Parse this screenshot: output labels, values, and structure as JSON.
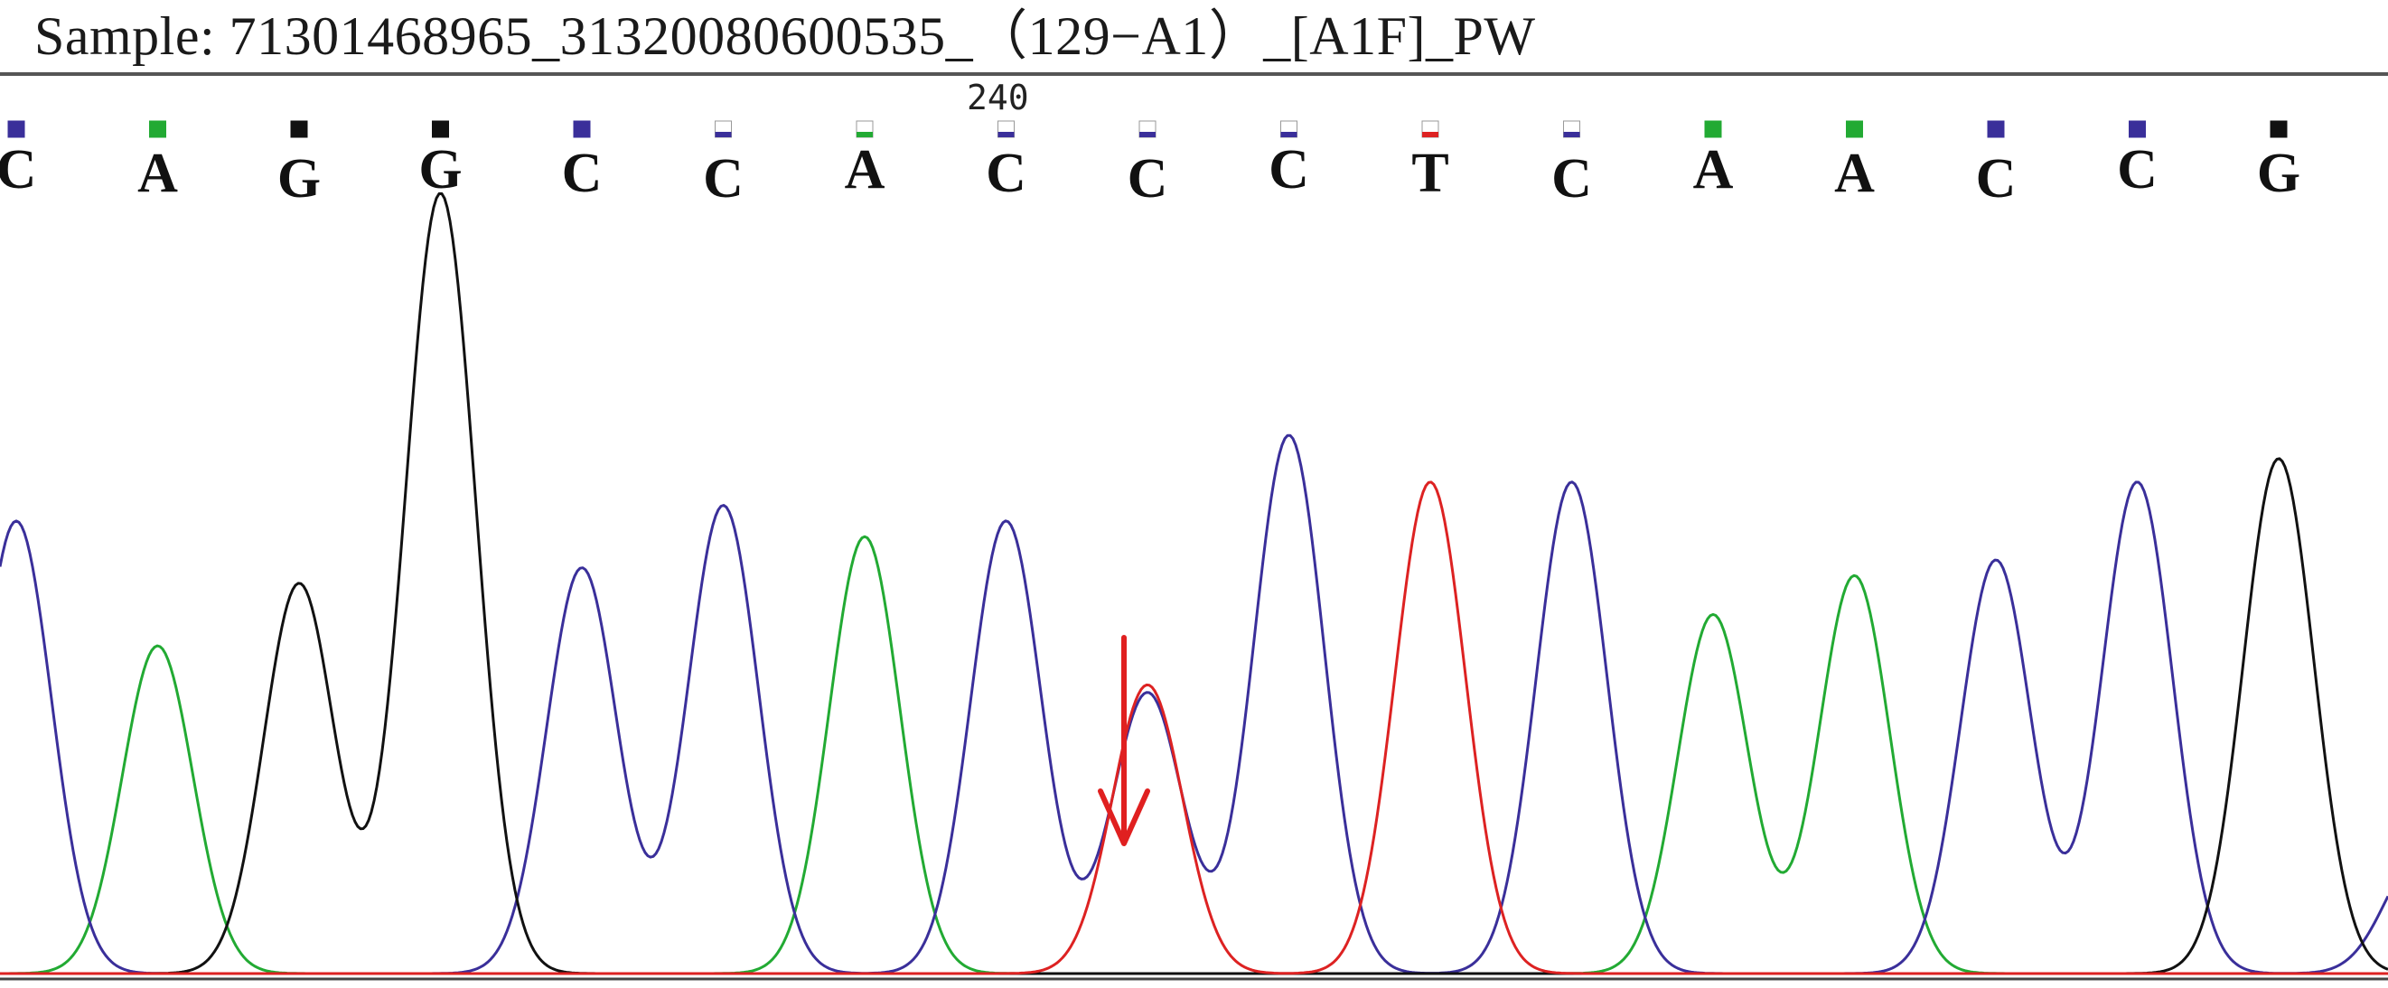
{
  "title": "Sample: 71301468965_31320080600535_（129−A1）_[A1F]_PW",
  "position_label": "240",
  "base_colors": {
    "A": "#22aa33",
    "C": "#3a2f9a",
    "G": "#111111",
    "T": "#dd2222"
  },
  "annotation": {
    "type": "arrow",
    "color": "#e02020",
    "points_to_base_index": 8
  },
  "chart_data": {
    "type": "line",
    "title": "Sample: 71301468965_31320080600535_（129−A1）_[A1F]_PW",
    "xlabel": "",
    "ylabel": "",
    "tick_labels": [
      "240"
    ],
    "grid": false,
    "bases": [
      "C",
      "A",
      "G",
      "G",
      "C",
      "C",
      "A",
      "C",
      "C",
      "C",
      "T",
      "C",
      "A",
      "A",
      "C",
      "C",
      "G"
    ],
    "quality_full": [
      true,
      true,
      true,
      true,
      true,
      false,
      false,
      false,
      false,
      false,
      false,
      false,
      true,
      true,
      true,
      true,
      true
    ],
    "series": [
      {
        "name": "A",
        "color": "#22aa33",
        "peaks": [
          [
            1,
            0.42
          ],
          [
            6,
            0.56
          ],
          [
            12,
            0.46
          ],
          [
            13,
            0.51
          ]
        ]
      },
      {
        "name": "C",
        "color": "#3a2f9a",
        "peaks": [
          [
            0,
            0.58
          ],
          [
            4,
            0.52
          ],
          [
            5,
            0.6
          ],
          [
            7,
            0.58
          ],
          [
            8,
            0.36
          ],
          [
            9,
            0.69
          ],
          [
            11,
            0.63
          ],
          [
            14,
            0.53
          ],
          [
            15,
            0.63
          ],
          [
            17,
            0.15
          ]
        ]
      },
      {
        "name": "G",
        "color": "#111111",
        "peaks": [
          [
            2,
            0.5
          ],
          [
            3,
            1.0
          ],
          [
            16,
            0.66
          ]
        ]
      },
      {
        "name": "T",
        "color": "#dd2222",
        "peaks": [
          [
            8,
            0.37
          ],
          [
            10,
            0.63
          ]
        ]
      }
    ]
  }
}
